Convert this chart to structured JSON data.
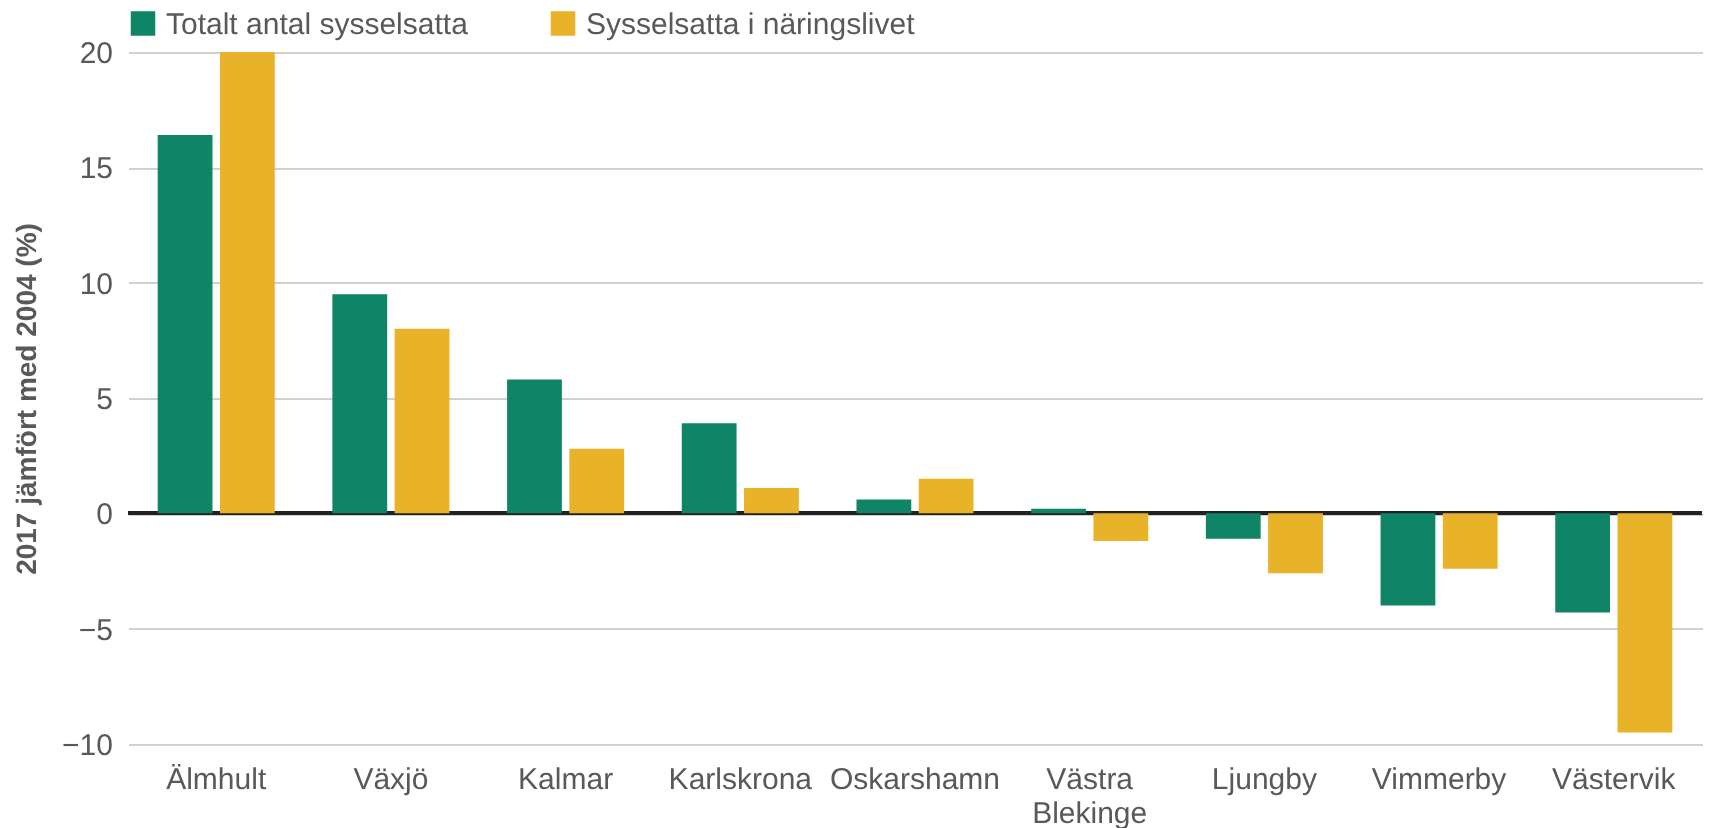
{
  "chart_data": {
    "type": "bar",
    "ylabel": "2017 jämfört med 2004 (%)",
    "categories": [
      "Älmhult",
      "Växjö",
      "Kalmar",
      "Karlskrona",
      "Oskarshamn",
      "Västra Blekinge",
      "Ljungby",
      "Vimmerby",
      "Västervik"
    ],
    "series": [
      {
        "name": "Totalt antal sysselsatta",
        "color": "#0f8466",
        "values": [
          16.4,
          9.5,
          5.8,
          3.9,
          0.6,
          0.2,
          -1.1,
          -4.0,
          -4.3
        ]
      },
      {
        "name": "Sysselsatta i näringslivet",
        "color": "#e8b229",
        "values": [
          20.0,
          8.0,
          2.8,
          1.1,
          1.5,
          -1.2,
          -2.6,
          -2.4,
          -9.5
        ]
      }
    ],
    "ylim": [
      -10,
      20
    ],
    "yticks": [
      -10,
      -5,
      0,
      5,
      10,
      15,
      20
    ],
    "grid": "y",
    "legend": "top"
  }
}
